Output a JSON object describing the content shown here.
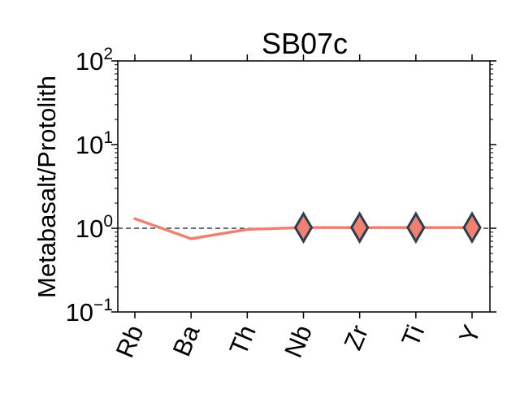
{
  "chart_data": {
    "type": "line",
    "title": "SB07c",
    "xlabel": "",
    "ylabel": "Metabasalt/Protolith",
    "categories": [
      "Rb",
      "Ba",
      "Th",
      "Nb",
      "Zr",
      "Ti",
      "Y"
    ],
    "yscale": "log",
    "ylim": [
      0.1,
      100
    ],
    "yticks": [
      {
        "base": "10",
        "exp": "−1",
        "value": 0.1
      },
      {
        "base": "10",
        "exp": "0",
        "value": 1
      },
      {
        "base": "10",
        "exp": "1",
        "value": 10
      },
      {
        "base": "10",
        "exp": "2",
        "value": 100
      }
    ],
    "reference_line": {
      "y": 1,
      "style": "dashed",
      "color": "#2b3f4e"
    },
    "grid": false,
    "series": [
      {
        "values": [
          1.3,
          0.75,
          0.97,
          1.02,
          1.02,
          1.02,
          1.02
        ],
        "color": "#f08070",
        "markers": {
          "shape": "diamond",
          "indices": [
            3,
            4,
            5,
            6
          ],
          "fill": "#f08070",
          "edge": "#2b3f4e"
        }
      }
    ]
  }
}
